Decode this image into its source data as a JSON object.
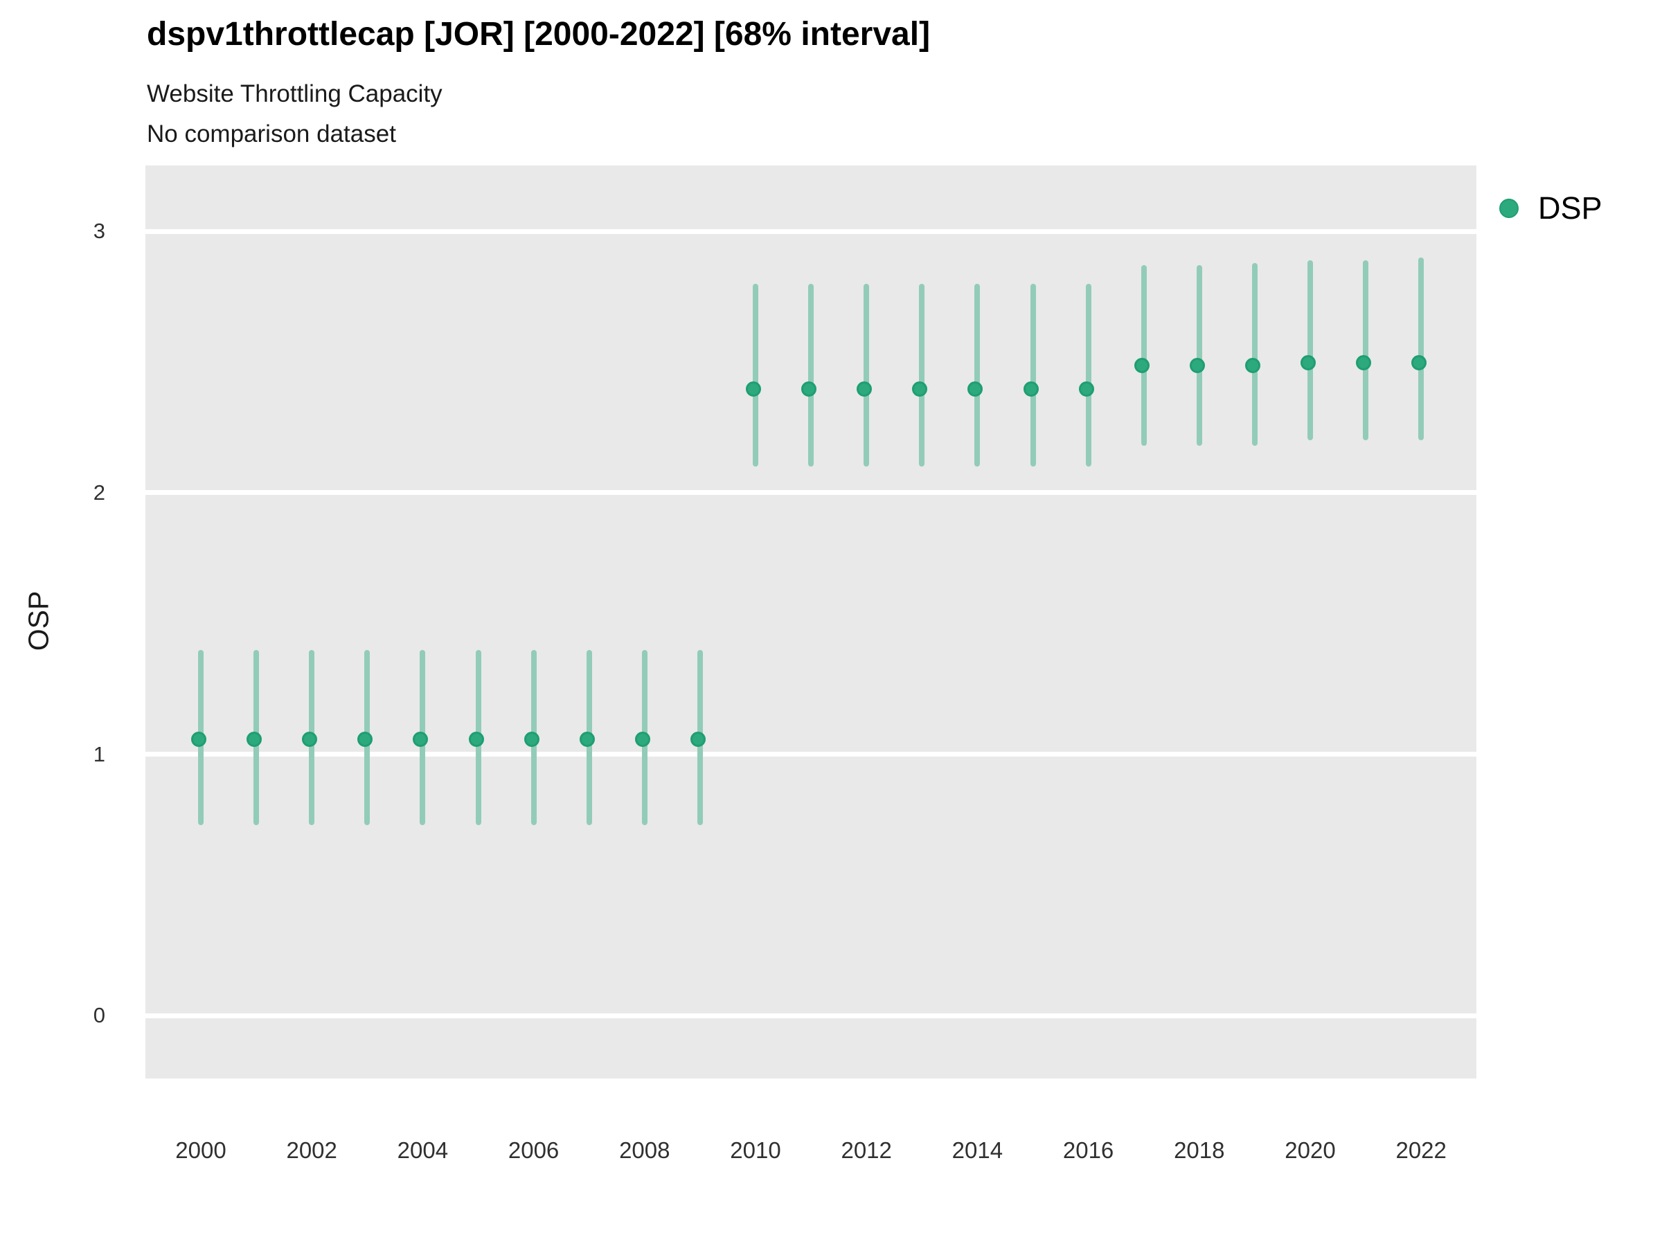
{
  "header": {
    "title": "dspv1throttlecap [JOR] [2000-2022] [68% interval]",
    "subtitle": "Website Throttling Capacity",
    "comparison_note": "No comparison dataset"
  },
  "legend": {
    "label": "DSP"
  },
  "colors": {
    "point_fill": "#2daa7d",
    "point_stroke": "#1f9e72",
    "interval_line": "#92ccb8",
    "panel_bg": "#e9e9e9",
    "gridline": "#ffffff",
    "axis_text": "#303030",
    "title_text": "#000000"
  },
  "chart_data": {
    "type": "scatter",
    "subtype": "pointrange",
    "title": "dspv1throttlecap [JOR] [2000-2022] [68% interval]",
    "subtitle": "Website Throttling Capacity",
    "note": "No comparison dataset",
    "interval": "68%",
    "xlabel": "",
    "ylabel": "OSP",
    "ylim": [
      -0.27,
      3.26
    ],
    "yticks": [
      0,
      1,
      2,
      3
    ],
    "x_ticks": [
      2000,
      2002,
      2004,
      2006,
      2008,
      2010,
      2012,
      2014,
      2016,
      2018,
      2020,
      2022
    ],
    "grid": "horizontal-white-on-gray",
    "legend_position": "top-right",
    "series": [
      {
        "name": "DSP",
        "x": [
          2000,
          2001,
          2002,
          2003,
          2004,
          2005,
          2006,
          2007,
          2008,
          2009,
          2010,
          2011,
          2012,
          2013,
          2014,
          2015,
          2016,
          2017,
          2018,
          2019,
          2020,
          2021,
          2022
        ],
        "y": [
          1.05,
          1.05,
          1.05,
          1.05,
          1.05,
          1.05,
          1.05,
          1.05,
          1.05,
          1.05,
          2.39,
          2.39,
          2.39,
          2.39,
          2.39,
          2.39,
          2.39,
          2.48,
          2.48,
          2.48,
          2.49,
          2.49,
          2.49
        ],
        "y_low": [
          0.73,
          0.73,
          0.73,
          0.73,
          0.73,
          0.73,
          0.73,
          0.73,
          0.73,
          0.73,
          2.1,
          2.1,
          2.1,
          2.1,
          2.1,
          2.1,
          2.1,
          2.18,
          2.18,
          2.18,
          2.2,
          2.2,
          2.2
        ],
        "y_high": [
          1.4,
          1.4,
          1.4,
          1.4,
          1.4,
          1.4,
          1.4,
          1.4,
          1.4,
          1.4,
          2.8,
          2.8,
          2.8,
          2.8,
          2.8,
          2.8,
          2.8,
          2.87,
          2.87,
          2.88,
          2.89,
          2.89,
          2.9
        ]
      }
    ]
  }
}
